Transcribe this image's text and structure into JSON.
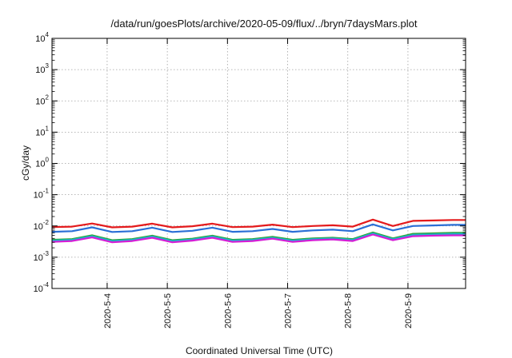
{
  "chart_data": {
    "type": "line",
    "title": "/data/run/goesPlots/archive/2020-05-09/flux/../bryn/7daysMars.plot",
    "xlabel": "Coordinated Universal Time (UTC)",
    "ylabel": "cGy/day",
    "yscale": "log",
    "ylim": [
      0.0001,
      10000
    ],
    "xlim": [
      "2020-05-03T02:00",
      "2020-05-09T23:00"
    ],
    "x_ticks": [
      "2020-5-4",
      "2020-5-5",
      "2020-5-6",
      "2020-5-7",
      "2020-5-8",
      "2020-5-9"
    ],
    "y_ticks": [
      {
        "base": "10",
        "exp": "-4"
      },
      {
        "base": "10",
        "exp": "-3"
      },
      {
        "base": "10",
        "exp": "-2"
      },
      {
        "base": "10",
        "exp": "-1"
      },
      {
        "base": "10",
        "exp": "0"
      },
      {
        "base": "10",
        "exp": "1"
      },
      {
        "base": "10",
        "exp": "2"
      },
      {
        "base": "10",
        "exp": "3"
      },
      {
        "base": "10",
        "exp": "4"
      }
    ],
    "grid": true,
    "x": [
      "2020-05-03T02:00",
      "2020-05-03T10:00",
      "2020-05-03T18:00",
      "2020-05-04T02:00",
      "2020-05-04T10:00",
      "2020-05-04T18:00",
      "2020-05-05T02:00",
      "2020-05-05T10:00",
      "2020-05-05T18:00",
      "2020-05-06T02:00",
      "2020-05-06T10:00",
      "2020-05-06T18:00",
      "2020-05-07T02:00",
      "2020-05-07T10:00",
      "2020-05-07T18:00",
      "2020-05-08T02:00",
      "2020-05-08T10:00",
      "2020-05-08T18:00",
      "2020-05-09T02:00",
      "2020-05-09T10:00",
      "2020-05-09T18:00",
      "2020-05-09T23:00"
    ],
    "series": [
      {
        "color": "#e41a1c",
        "values": [
          0.0092,
          0.0095,
          0.012,
          0.009,
          0.0095,
          0.0118,
          0.009,
          0.0098,
          0.0118,
          0.0092,
          0.0095,
          0.011,
          0.0092,
          0.01,
          0.0105,
          0.0095,
          0.016,
          0.01,
          0.0145,
          0.015,
          0.0155,
          0.0155
        ]
      },
      {
        "color": "#2b6fd6",
        "values": [
          0.0065,
          0.0068,
          0.009,
          0.0064,
          0.0068,
          0.0088,
          0.0064,
          0.007,
          0.0088,
          0.0065,
          0.0068,
          0.008,
          0.0065,
          0.0072,
          0.0076,
          0.0068,
          0.0112,
          0.0072,
          0.01,
          0.0104,
          0.0108,
          0.0108
        ]
      },
      {
        "color": "#2ca02c",
        "values": [
          0.0036,
          0.0038,
          0.005,
          0.0035,
          0.0038,
          0.0049,
          0.0035,
          0.0039,
          0.0049,
          0.0036,
          0.0038,
          0.0045,
          0.0036,
          0.004,
          0.0042,
          0.0038,
          0.0062,
          0.004,
          0.0056,
          0.0058,
          0.006,
          0.006
        ]
      },
      {
        "color": "#19b6c9",
        "values": [
          0.0034,
          0.0036,
          0.0047,
          0.0033,
          0.0036,
          0.0046,
          0.0033,
          0.0037,
          0.0046,
          0.0034,
          0.0036,
          0.0042,
          0.0034,
          0.0038,
          0.004,
          0.0036,
          0.0058,
          0.0038,
          0.0052,
          0.0054,
          0.0056,
          0.0056
        ]
      },
      {
        "color": "#d51ed5",
        "values": [
          0.0031,
          0.0033,
          0.0043,
          0.003,
          0.0033,
          0.0042,
          0.003,
          0.0034,
          0.0042,
          0.0031,
          0.0033,
          0.0039,
          0.0031,
          0.0035,
          0.0037,
          0.0033,
          0.0053,
          0.0035,
          0.0047,
          0.0049,
          0.005,
          0.005
        ]
      }
    ]
  }
}
